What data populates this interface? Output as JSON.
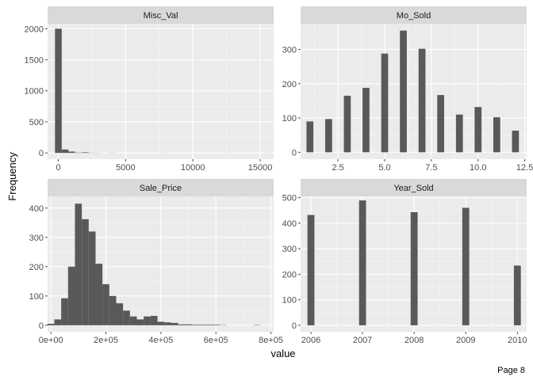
{
  "page_label": "Page 8",
  "chart_data": {
    "type": "bar",
    "xlabel": "value",
    "ylabel": "Frequency",
    "facets": [
      {
        "title": "Misc_Val",
        "xlim": [
          -800,
          16000
        ],
        "ylim": [
          -100,
          2080
        ],
        "x_ticks": [
          0,
          5000,
          10000,
          15000
        ],
        "x_tick_labels": [
          "0",
          "5000",
          "10000",
          "15000"
        ],
        "y_ticks": [
          0,
          500,
          1000,
          1500,
          2000
        ],
        "y_tick_labels": [
          "0",
          "500",
          "1000",
          "1500",
          "2000"
        ],
        "bars": [
          {
            "x": 0,
            "w": 500,
            "y": 2000
          },
          {
            "x": 500,
            "w": 500,
            "y": 55
          },
          {
            "x": 1000,
            "w": 500,
            "y": 22
          },
          {
            "x": 1500,
            "w": 500,
            "y": 5
          },
          {
            "x": 2000,
            "w": 500,
            "y": 10
          },
          {
            "x": 2500,
            "w": 500,
            "y": 3
          },
          {
            "x": 3000,
            "w": 500,
            "y": 2
          },
          {
            "x": 4000,
            "w": 500,
            "y": 2
          },
          {
            "x": 8000,
            "w": 500,
            "y": 1
          },
          {
            "x": 12500,
            "w": 500,
            "y": 1
          },
          {
            "x": 15500,
            "w": 500,
            "y": 1
          }
        ]
      },
      {
        "title": "Mo_Sold",
        "xlim": [
          0.5,
          12.6
        ],
        "ylim": [
          -20,
          375
        ],
        "x_ticks": [
          2.5,
          5.0,
          7.5,
          10.0,
          12.5
        ],
        "x_tick_labels": [
          "2.5",
          "5.0",
          "7.5",
          "10.0",
          "12.5"
        ],
        "y_ticks": [
          0,
          100,
          200,
          300
        ],
        "y_tick_labels": [
          "0",
          "100",
          "200",
          "300"
        ],
        "bars": [
          {
            "x": 1,
            "w": 0.37,
            "y": 90
          },
          {
            "x": 2,
            "w": 0.37,
            "y": 97
          },
          {
            "x": 3,
            "w": 0.37,
            "y": 165
          },
          {
            "x": 4,
            "w": 0.37,
            "y": 188
          },
          {
            "x": 5,
            "w": 0.37,
            "y": 288
          },
          {
            "x": 6,
            "w": 0.37,
            "y": 355
          },
          {
            "x": 7,
            "w": 0.37,
            "y": 302
          },
          {
            "x": 8,
            "w": 0.37,
            "y": 167
          },
          {
            "x": 9,
            "w": 0.37,
            "y": 110
          },
          {
            "x": 10,
            "w": 0.37,
            "y": 132
          },
          {
            "x": 11,
            "w": 0.37,
            "y": 102
          },
          {
            "x": 12,
            "w": 0.37,
            "y": 63
          }
        ]
      },
      {
        "title": "Sale_Price",
        "xlim": [
          -12000,
          810000
        ],
        "ylim": [
          -22,
          440
        ],
        "x_ticks": [
          0,
          200000,
          400000,
          600000,
          800000
        ],
        "x_tick_labels": [
          "0e+00",
          "2e+05",
          "4e+05",
          "6e+05",
          "8e+05"
        ],
        "y_ticks": [
          0,
          100,
          200,
          300,
          400
        ],
        "y_tick_labels": [
          "0",
          "100",
          "200",
          "300",
          "400"
        ],
        "bars": [
          {
            "x": 0,
            "w": 25000,
            "y": 5
          },
          {
            "x": 25000,
            "w": 25000,
            "y": 20
          },
          {
            "x": 50000,
            "w": 25000,
            "y": 92
          },
          {
            "x": 75000,
            "w": 25000,
            "y": 200
          },
          {
            "x": 100000,
            "w": 25000,
            "y": 415
          },
          {
            "x": 125000,
            "w": 25000,
            "y": 362
          },
          {
            "x": 150000,
            "w": 25000,
            "y": 320
          },
          {
            "x": 175000,
            "w": 25000,
            "y": 210
          },
          {
            "x": 200000,
            "w": 25000,
            "y": 140
          },
          {
            "x": 225000,
            "w": 25000,
            "y": 100
          },
          {
            "x": 250000,
            "w": 25000,
            "y": 75
          },
          {
            "x": 275000,
            "w": 25000,
            "y": 50
          },
          {
            "x": 300000,
            "w": 25000,
            "y": 30
          },
          {
            "x": 325000,
            "w": 25000,
            "y": 20
          },
          {
            "x": 350000,
            "w": 25000,
            "y": 30
          },
          {
            "x": 375000,
            "w": 25000,
            "y": 32
          },
          {
            "x": 400000,
            "w": 25000,
            "y": 12
          },
          {
            "x": 425000,
            "w": 25000,
            "y": 10
          },
          {
            "x": 450000,
            "w": 25000,
            "y": 8
          },
          {
            "x": 475000,
            "w": 25000,
            "y": 3
          },
          {
            "x": 500000,
            "w": 25000,
            "y": 3
          },
          {
            "x": 525000,
            "w": 25000,
            "y": 2
          },
          {
            "x": 550000,
            "w": 25000,
            "y": 2
          },
          {
            "x": 575000,
            "w": 25000,
            "y": 2
          },
          {
            "x": 600000,
            "w": 25000,
            "y": 2
          },
          {
            "x": 625000,
            "w": 25000,
            "y": 1
          },
          {
            "x": 750000,
            "w": 25000,
            "y": 1
          }
        ]
      },
      {
        "title": "Year_Sold",
        "xlim": [
          2005.8,
          2010.18
        ],
        "ylim": [
          -25,
          505
        ],
        "x_ticks": [
          2006,
          2007,
          2008,
          2009,
          2010
        ],
        "x_tick_labels": [
          "2006",
          "2007",
          "2008",
          "2009",
          "2010"
        ],
        "y_ticks": [
          0,
          100,
          200,
          300,
          400,
          500
        ],
        "y_tick_labels": [
          "0",
          "100",
          "200",
          "300",
          "400",
          "500"
        ],
        "bars": [
          {
            "x": 2006,
            "w": 0.135,
            "y": 432
          },
          {
            "x": 2007,
            "w": 0.135,
            "y": 489
          },
          {
            "x": 2008,
            "w": 0.135,
            "y": 443
          },
          {
            "x": 2009,
            "w": 0.135,
            "y": 460
          },
          {
            "x": 2010,
            "w": 0.135,
            "y": 234
          }
        ]
      }
    ]
  }
}
